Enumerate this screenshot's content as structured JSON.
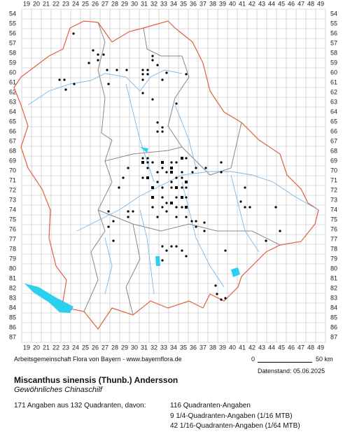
{
  "map": {
    "columns": [
      19,
      20,
      21,
      22,
      23,
      24,
      25,
      26,
      27,
      28,
      29,
      30,
      31,
      32,
      33,
      34,
      35,
      36,
      37,
      38,
      39,
      40,
      41,
      42,
      43,
      44,
      45,
      46,
      47,
      48,
      49
    ],
    "rows": [
      54,
      55,
      56,
      57,
      58,
      59,
      60,
      61,
      62,
      63,
      64,
      65,
      66,
      67,
      68,
      69,
      70,
      71,
      72,
      73,
      74,
      75,
      76,
      77,
      78,
      79,
      80,
      81,
      82,
      83,
      84,
      85,
      86,
      87
    ]
  },
  "footer": {
    "credit": "Arbeitsgemeinschaft Flora von Bayern - www.bayernflora.de",
    "scale_start": "0",
    "scale_end": "50 km",
    "date": "Datenstand: 05.06.2025"
  },
  "species": {
    "name": "Miscanthus sinensis (Thunb.) Andersson",
    "common_name": "Gewöhnliches Chinaschilf"
  },
  "stats": {
    "summary": "171 Angaben aus 132 Quadranten, davon:",
    "quadrant": "116 Quadranten-Angaben",
    "quarter": "9 1/4-Quadranten-Angaben (1/16 MTB)",
    "sixteenth": "42 1/16-Quadranten-Angaben (1/64 MTB)"
  }
}
